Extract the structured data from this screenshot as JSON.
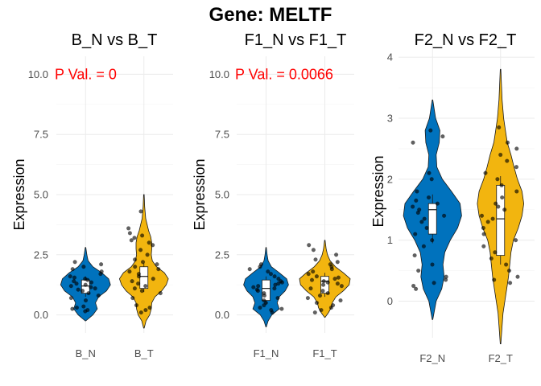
{
  "title": "Gene: MELTF",
  "chart_data": [
    {
      "type": "violin",
      "title": "B_N vs B_T",
      "xlabel": "",
      "ylabel": "Expression",
      "ylim": [
        -0.75,
        10.75
      ],
      "yticks": [
        0.0,
        2.5,
        5.0,
        7.5,
        10.0
      ],
      "ytick_labels": [
        "0.0",
        "2.5",
        "5.0",
        "7.5",
        "10.0"
      ],
      "categories": [
        "B_N",
        "B_T"
      ],
      "annotation": "P Val. = 0",
      "grid": true,
      "series": [
        {
          "category": "B_N",
          "color": "#0072bd",
          "min": -0.25,
          "max": 2.8,
          "median": 1.2,
          "q1": 0.9,
          "q3": 1.45,
          "density": [
            [
              -0.25,
              0.01
            ],
            [
              0.0,
              0.28
            ],
            [
              0.25,
              0.45
            ],
            [
              0.5,
              0.38
            ],
            [
              0.75,
              0.5
            ],
            [
              1.0,
              0.8
            ],
            [
              1.25,
              0.95
            ],
            [
              1.5,
              0.88
            ],
            [
              1.75,
              0.62
            ],
            [
              2.0,
              0.28
            ],
            [
              2.25,
              0.1
            ],
            [
              2.5,
              0.05
            ],
            [
              2.8,
              0.01
            ]
          ],
          "points": [
            0.15,
            0.2,
            0.25,
            0.3,
            0.35,
            0.6,
            0.7,
            0.8,
            0.9,
            1.0,
            1.05,
            1.1,
            1.15,
            1.2,
            1.25,
            1.3,
            1.35,
            1.4,
            1.45,
            1.5,
            1.55,
            1.6,
            1.7,
            1.8,
            1.9,
            2.0,
            2.1,
            2.2
          ]
        },
        {
          "category": "B_T",
          "color": "#f2b50f",
          "min": -0.55,
          "max": 5.0,
          "median": 1.6,
          "q1": 1.1,
          "q3": 2.0,
          "density": [
            [
              -0.55,
              0.01
            ],
            [
              -0.25,
              0.08
            ],
            [
              0.0,
              0.22
            ],
            [
              0.25,
              0.28
            ],
            [
              0.5,
              0.3
            ],
            [
              0.75,
              0.42
            ],
            [
              1.0,
              0.68
            ],
            [
              1.25,
              0.85
            ],
            [
              1.5,
              0.93
            ],
            [
              1.75,
              0.78
            ],
            [
              2.0,
              0.48
            ],
            [
              2.25,
              0.32
            ],
            [
              2.5,
              0.28
            ],
            [
              2.75,
              0.3
            ],
            [
              3.0,
              0.3
            ],
            [
              3.25,
              0.26
            ],
            [
              3.5,
              0.18
            ],
            [
              4.0,
              0.07
            ],
            [
              4.5,
              0.03
            ],
            [
              5.0,
              0.01
            ]
          ],
          "points": [
            0.1,
            0.2,
            0.3,
            0.4,
            0.7,
            0.9,
            1.0,
            1.1,
            1.2,
            1.3,
            1.4,
            1.5,
            1.6,
            1.7,
            1.8,
            1.9,
            2.0,
            2.1,
            2.2,
            2.3,
            2.5,
            2.7,
            2.9,
            3.0,
            3.1,
            3.2,
            3.3,
            3.4,
            3.6,
            4.3
          ]
        }
      ]
    },
    {
      "type": "violin",
      "title": "F1_N vs F1_T",
      "xlabel": "",
      "ylabel": "Expression",
      "ylim": [
        -0.75,
        10.75
      ],
      "yticks": [
        0.0,
        2.5,
        5.0,
        7.5,
        10.0
      ],
      "ytick_labels": [
        "0.0",
        "2.5",
        "5.0",
        "7.5",
        "10.0"
      ],
      "categories": [
        "F1_N",
        "F1_T"
      ],
      "annotation": "P Val. = 0.0066",
      "grid": true,
      "series": [
        {
          "category": "F1_N",
          "color": "#0072bd",
          "min": -0.5,
          "max": 2.8,
          "median": 1.1,
          "q1": 0.6,
          "q3": 1.45,
          "density": [
            [
              -0.5,
              0.01
            ],
            [
              -0.25,
              0.08
            ],
            [
              0.0,
              0.22
            ],
            [
              0.25,
              0.5
            ],
            [
              0.5,
              0.42
            ],
            [
              0.75,
              0.5
            ],
            [
              1.0,
              0.72
            ],
            [
              1.25,
              0.85
            ],
            [
              1.5,
              0.78
            ],
            [
              1.75,
              0.5
            ],
            [
              2.0,
              0.2
            ],
            [
              2.25,
              0.08
            ],
            [
              2.5,
              0.04
            ],
            [
              2.8,
              0.01
            ]
          ],
          "points": [
            0.1,
            0.2,
            0.25,
            0.3,
            0.4,
            0.5,
            0.6,
            0.7,
            0.8,
            0.9,
            1.0,
            1.05,
            1.1,
            1.15,
            1.2,
            1.25,
            1.3,
            1.35,
            1.4,
            1.5,
            1.6,
            1.7,
            1.8,
            1.9,
            2.0,
            2.1
          ]
        },
        {
          "category": "F1_T",
          "color": "#f2b50f",
          "min": -0.1,
          "max": 3.1,
          "median": 1.4,
          "q1": 0.9,
          "q3": 1.6,
          "density": [
            [
              -0.1,
              0.01
            ],
            [
              0.1,
              0.14
            ],
            [
              0.3,
              0.24
            ],
            [
              0.5,
              0.28
            ],
            [
              0.75,
              0.42
            ],
            [
              1.0,
              0.7
            ],
            [
              1.25,
              0.92
            ],
            [
              1.5,
              0.96
            ],
            [
              1.75,
              0.7
            ],
            [
              2.0,
              0.4
            ],
            [
              2.25,
              0.2
            ],
            [
              2.5,
              0.1
            ],
            [
              2.75,
              0.05
            ],
            [
              3.1,
              0.01
            ]
          ],
          "points": [
            0.1,
            0.2,
            0.3,
            0.4,
            0.5,
            0.6,
            0.7,
            0.8,
            0.9,
            1.0,
            1.1,
            1.2,
            1.25,
            1.3,
            1.35,
            1.4,
            1.45,
            1.5,
            1.55,
            1.6,
            1.7,
            1.8,
            1.9,
            2.0,
            2.1,
            2.2,
            2.3,
            2.5,
            2.7,
            2.9
          ]
        }
      ]
    },
    {
      "type": "violin",
      "title": "F2_N vs F2_T",
      "xlabel": "",
      "ylabel": "Expression",
      "ylim": [
        -0.6,
        4.2
      ],
      "yticks": [
        0,
        1,
        2,
        3,
        4
      ],
      "ytick_labels": [
        "0",
        "1",
        "2",
        "3",
        "4"
      ],
      "categories": [
        "F2_N",
        "F2_T"
      ],
      "annotation": "",
      "grid": true,
      "series": [
        {
          "category": "F2_N",
          "color": "#0072bd",
          "min": -0.3,
          "max": 3.3,
          "median": 1.5,
          "q1": 1.1,
          "q3": 1.6,
          "density": [
            [
              -0.3,
              0.01
            ],
            [
              0.0,
              0.12
            ],
            [
              0.2,
              0.3
            ],
            [
              0.4,
              0.38
            ],
            [
              0.6,
              0.34
            ],
            [
              0.8,
              0.4
            ],
            [
              1.0,
              0.58
            ],
            [
              1.2,
              0.82
            ],
            [
              1.4,
              0.95
            ],
            [
              1.6,
              0.9
            ],
            [
              1.8,
              0.62
            ],
            [
              2.0,
              0.32
            ],
            [
              2.2,
              0.14
            ],
            [
              2.4,
              0.12
            ],
            [
              2.6,
              0.22
            ],
            [
              2.8,
              0.24
            ],
            [
              3.0,
              0.1
            ],
            [
              3.3,
              0.01
            ]
          ],
          "points": [
            0.2,
            0.25,
            0.3,
            0.35,
            0.4,
            0.5,
            0.6,
            0.75,
            0.9,
            1.0,
            1.1,
            1.2,
            1.3,
            1.35,
            1.4,
            1.45,
            1.5,
            1.55,
            1.6,
            1.65,
            1.7,
            1.8,
            2.0,
            2.1,
            2.6,
            2.7,
            2.8
          ]
        },
        {
          "category": "F2_T",
          "color": "#f2b50f",
          "min": -0.7,
          "max": 3.8,
          "median": 1.35,
          "q1": 0.75,
          "q3": 1.9,
          "density": [
            [
              -0.7,
              0.01
            ],
            [
              -0.4,
              0.05
            ],
            [
              -0.2,
              0.08
            ],
            [
              0.0,
              0.14
            ],
            [
              0.2,
              0.2
            ],
            [
              0.4,
              0.26
            ],
            [
              0.6,
              0.3
            ],
            [
              0.8,
              0.34
            ],
            [
              1.0,
              0.42
            ],
            [
              1.2,
              0.58
            ],
            [
              1.4,
              0.7
            ],
            [
              1.6,
              0.76
            ],
            [
              1.8,
              0.7
            ],
            [
              2.0,
              0.55
            ],
            [
              2.2,
              0.44
            ],
            [
              2.4,
              0.34
            ],
            [
              2.6,
              0.22
            ],
            [
              2.8,
              0.16
            ],
            [
              3.0,
              0.1
            ],
            [
              3.3,
              0.05
            ],
            [
              3.8,
              0.01
            ]
          ],
          "points": [
            0.3,
            0.35,
            0.4,
            0.5,
            0.6,
            0.7,
            0.8,
            0.9,
            1.0,
            1.1,
            1.2,
            1.3,
            1.35,
            1.4,
            1.5,
            1.55,
            1.6,
            1.7,
            1.8,
            1.9,
            2.0,
            2.1,
            2.2,
            2.3,
            2.4,
            2.5,
            2.6,
            2.85
          ]
        }
      ]
    }
  ]
}
